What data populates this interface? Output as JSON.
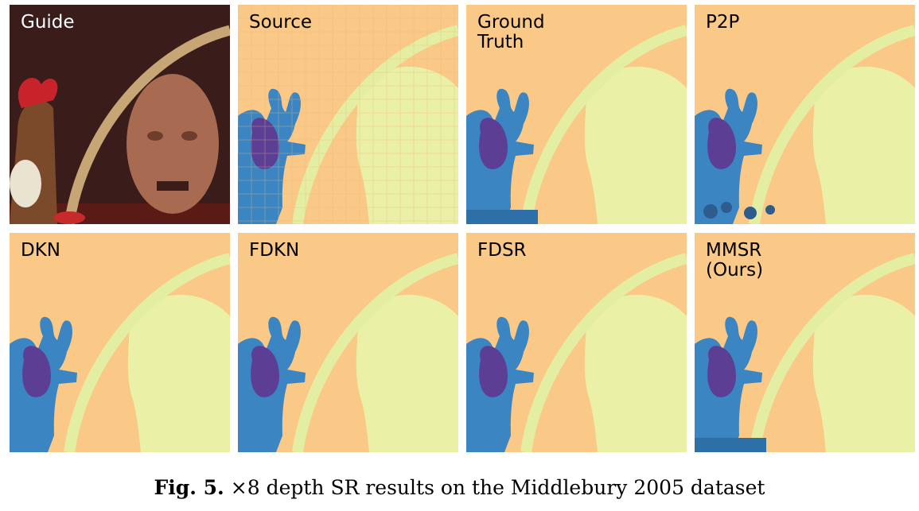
{
  "figure": {
    "panels": [
      {
        "id": "guide",
        "label": "Guide",
        "kind": "photo"
      },
      {
        "id": "source",
        "label": "Source",
        "kind": "depth-lowres"
      },
      {
        "id": "gt",
        "label": "Ground\nTruth",
        "kind": "depth-gt"
      },
      {
        "id": "p2p",
        "label": "P2P",
        "kind": "depth-noisy"
      },
      {
        "id": "dkn",
        "label": "DKN",
        "kind": "depth-smooth"
      },
      {
        "id": "fdkn",
        "label": "FDKN",
        "kind": "depth-smooth"
      },
      {
        "id": "fdsr",
        "label": "FDSR",
        "kind": "depth-smooth"
      },
      {
        "id": "mmsr",
        "label": "MMSR\n(Ours)",
        "kind": "depth-gt"
      }
    ],
    "caption_label": "Fig. 5.",
    "caption_text": "×8 depth SR results on the Middlebury 2005 dataset"
  },
  "colors": {
    "background_depth": "#fbc987",
    "head_depth": "#eaf1a7",
    "arch_depth": "#e3eea2",
    "antler_depth": "#3b86c2",
    "body_depth": "#5c3f95",
    "guide_bg": "#3a1d1b",
    "guide_head": "#a86a50",
    "guide_basket": "#c7a676",
    "guide_toy_red": "#c8232a"
  }
}
